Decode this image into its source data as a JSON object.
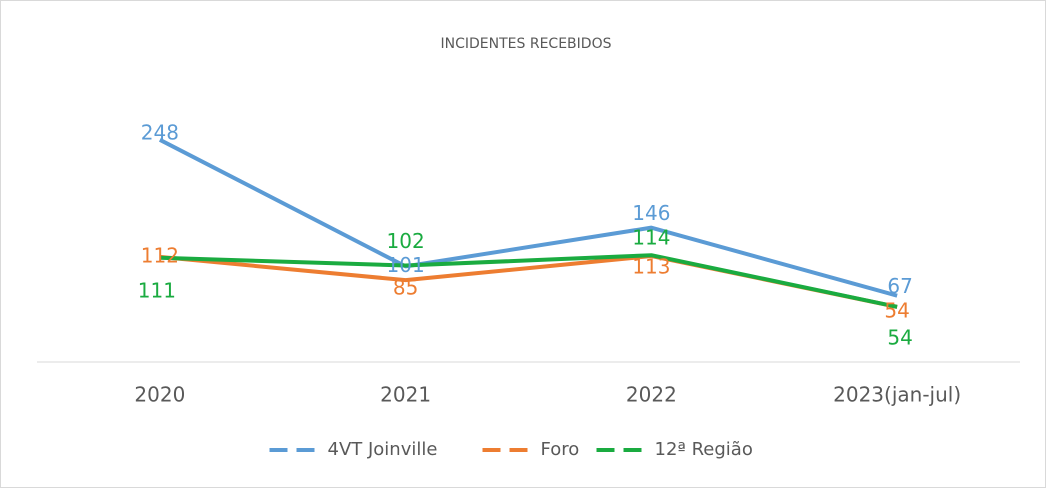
{
  "chart_data": {
    "type": "line",
    "title": "INCIDENTES RECEBIDOS",
    "categories": [
      "2020",
      "2021",
      "2022",
      "2023(jan-jul)"
    ],
    "series": [
      {
        "name": "4VT Joinville",
        "color": "#5b9bd5",
        "values": [
          248,
          101,
          146,
          67
        ]
      },
      {
        "name": "Foro",
        "color": "#ed7d31",
        "values": [
          112,
          85,
          113,
          54
        ]
      },
      {
        "name": "12ª Região",
        "color": "#1aab40",
        "values": [
          111,
          102,
          114,
          54
        ]
      }
    ],
    "ylim": [
      -10,
      300
    ],
    "legend": "bottom"
  }
}
